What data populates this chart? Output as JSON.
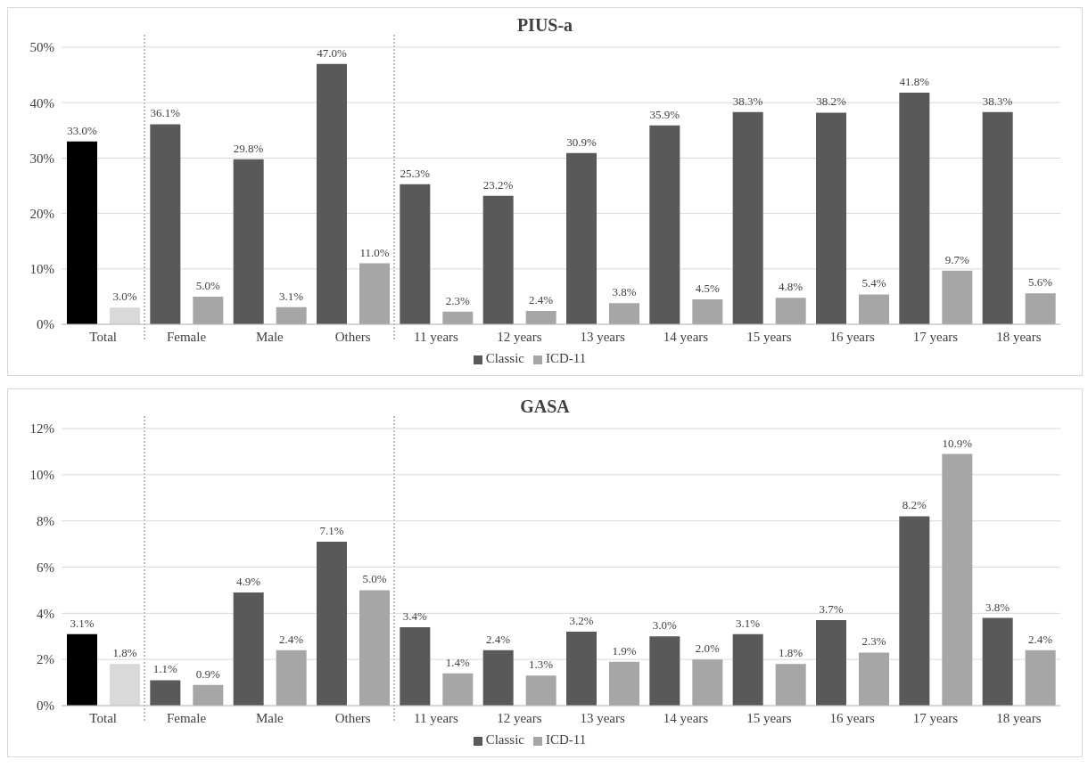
{
  "chart_data": [
    {
      "type": "bar",
      "title": "PIUS-a",
      "categories": [
        "Total",
        "Female",
        "Male",
        "Others",
        "11 years",
        "12 years",
        "13 years",
        "14 years",
        "15 years",
        "16 years",
        "17 years",
        "18 years"
      ],
      "series": [
        {
          "name": "Classic",
          "color": "#595959",
          "colors": [
            "#000000",
            "#595959",
            "#595959",
            "#595959",
            "#595959",
            "#595959",
            "#595959",
            "#595959",
            "#595959",
            "#595959",
            "#595959",
            "#595959"
          ],
          "values": [
            33.0,
            36.1,
            29.8,
            47.0,
            25.3,
            23.2,
            30.9,
            35.9,
            38.3,
            38.2,
            41.8,
            38.3
          ],
          "value_labels": [
            "33.0%",
            "36.1%",
            "29.8%",
            "47.0%",
            "25.3%",
            "23.2%",
            "30.9%",
            "35.9%",
            "38.3%",
            "38.2%",
            "41.8%",
            "38.3%"
          ]
        },
        {
          "name": "ICD-11",
          "color": "#a6a6a6",
          "colors": [
            "#d9d9d9",
            "#a6a6a6",
            "#a6a6a6",
            "#a6a6a6",
            "#a6a6a6",
            "#a6a6a6",
            "#a6a6a6",
            "#a6a6a6",
            "#a6a6a6",
            "#a6a6a6",
            "#a6a6a6",
            "#a6a6a6"
          ],
          "values": [
            3.0,
            5.0,
            3.1,
            11.0,
            2.3,
            2.4,
            3.8,
            4.5,
            4.8,
            5.4,
            9.7,
            5.6
          ],
          "value_labels": [
            "3.0%",
            "5.0%",
            "3.1%",
            "11.0%",
            "2.3%",
            "2.4%",
            "3.8%",
            "4.5%",
            "4.8%",
            "5.4%",
            "9.7%",
            "5.6%"
          ]
        }
      ],
      "ylim": [
        0,
        50
      ],
      "yticks": [
        {
          "value": 0,
          "label": "0%"
        },
        {
          "value": 10,
          "label": "10%"
        },
        {
          "value": 20,
          "label": "20%"
        },
        {
          "value": 30,
          "label": "30%"
        },
        {
          "value": 40,
          "label": "40%"
        },
        {
          "value": 50,
          "label": "50%"
        }
      ],
      "grid": "y",
      "legend": "bottom"
    },
    {
      "type": "bar",
      "title": "GASA",
      "categories": [
        "Total",
        "Female",
        "Male",
        "Others",
        "11 years",
        "12 years",
        "13 years",
        "14 years",
        "15 years",
        "16 years",
        "17 years",
        "18 years"
      ],
      "series": [
        {
          "name": "Classic",
          "color": "#595959",
          "colors": [
            "#000000",
            "#595959",
            "#595959",
            "#595959",
            "#595959",
            "#595959",
            "#595959",
            "#595959",
            "#595959",
            "#595959",
            "#595959",
            "#595959"
          ],
          "values": [
            3.1,
            1.1,
            4.9,
            7.1,
            3.4,
            2.4,
            3.2,
            3.0,
            3.1,
            3.7,
            8.2,
            3.8
          ],
          "value_labels": [
            "3.1%",
            "1.1%",
            "4.9%",
            "7.1%",
            "3.4%",
            "2.4%",
            "3.2%",
            "3.0%",
            "3.1%",
            "3.7%",
            "8.2%",
            "3.8%"
          ]
        },
        {
          "name": "ICD-11",
          "color": "#a6a6a6",
          "colors": [
            "#d9d9d9",
            "#a6a6a6",
            "#a6a6a6",
            "#a6a6a6",
            "#a6a6a6",
            "#a6a6a6",
            "#a6a6a6",
            "#a6a6a6",
            "#a6a6a6",
            "#a6a6a6",
            "#a6a6a6",
            "#a6a6a6"
          ],
          "values": [
            1.8,
            0.9,
            2.4,
            5.0,
            1.4,
            1.3,
            1.9,
            2.0,
            1.8,
            2.3,
            10.9,
            2.4
          ],
          "value_labels": [
            "1.8%",
            "0.9%",
            "2.4%",
            "5.0%",
            "1.4%",
            "1.3%",
            "1.9%",
            "2.0%",
            "1.8%",
            "2.3%",
            "10.9%",
            "2.4%"
          ]
        }
      ],
      "ylim": [
        0,
        12
      ],
      "yticks": [
        {
          "value": 0,
          "label": "0%"
        },
        {
          "value": 2,
          "label": "2%"
        },
        {
          "value": 4,
          "label": "4%"
        },
        {
          "value": 6,
          "label": "6%"
        },
        {
          "value": 8,
          "label": "8%"
        },
        {
          "value": 10,
          "label": "10%"
        },
        {
          "value": 12,
          "label": "12%"
        }
      ],
      "grid": "y",
      "legend": "bottom"
    }
  ]
}
